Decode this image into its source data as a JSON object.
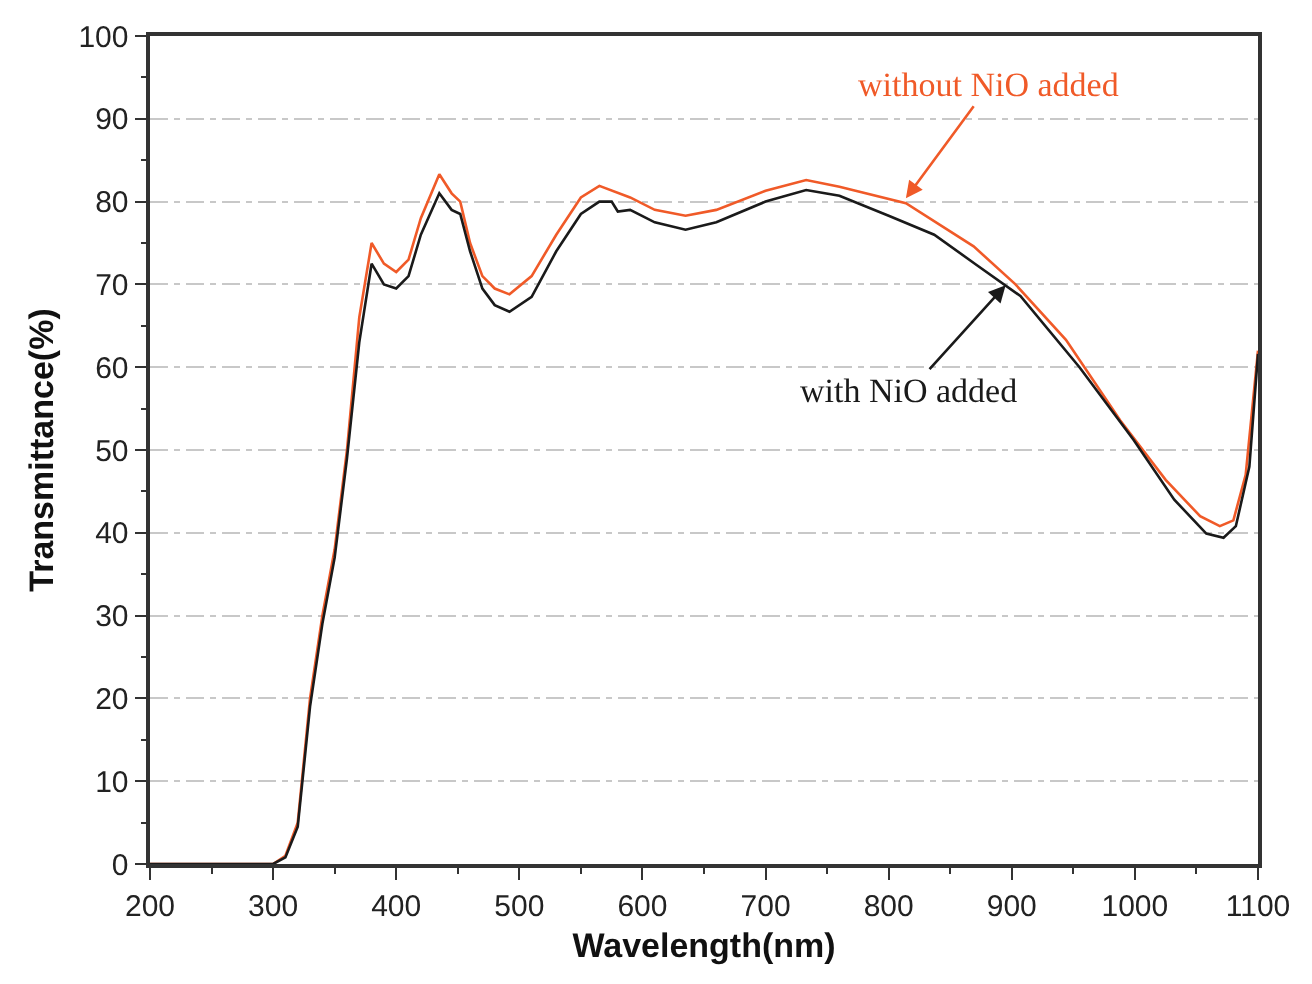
{
  "chart_data": {
    "type": "line",
    "xlabel": "Wavelength(nm)",
    "ylabel": "Transmittance(%)",
    "xlim": [
      200,
      1100
    ],
    "xticks": [
      200,
      300,
      400,
      500,
      600,
      700,
      800,
      900,
      1000,
      1100
    ],
    "ylim": [
      0,
      100
    ],
    "yticks": [
      0,
      10,
      20,
      30,
      40,
      50,
      60,
      70,
      80,
      90,
      100
    ],
    "grid": "y",
    "line_style": "solid",
    "marker": "none",
    "series": [
      {
        "color": "#f05a28",
        "x": [
          200,
          250,
          300,
          310,
          320,
          330,
          340,
          350,
          360,
          370,
          380,
          390,
          400,
          410,
          420,
          435,
          445,
          452,
          460,
          470,
          480,
          492,
          510,
          530,
          550,
          565,
          590,
          610,
          635,
          660,
          700,
          733,
          760,
          814,
          869,
          903,
          944,
          988,
          1025,
          1053,
          1069,
          1080,
          1090,
          1100
        ],
        "values": [
          0,
          0,
          0,
          1,
          5,
          20,
          30,
          38,
          50,
          66,
          75,
          72.5,
          71.5,
          73,
          78,
          83.3,
          81,
          80,
          75,
          71,
          69.5,
          68.8,
          71,
          76,
          80.5,
          81.9,
          80.5,
          79,
          78.3,
          79,
          81.3,
          82.6,
          81.8,
          79.8,
          74.6,
          70,
          63.3,
          53.6,
          46.4,
          42,
          40.8,
          41.5,
          47,
          62
        ]
      },
      {
        "color": "#1a1a1a",
        "x": [
          200,
          250,
          300,
          310,
          320,
          330,
          340,
          350,
          360,
          370,
          380,
          390,
          400,
          410,
          420,
          435,
          445,
          452,
          460,
          470,
          480,
          492,
          510,
          530,
          550,
          565,
          575,
          580,
          590,
          610,
          635,
          660,
          700,
          733,
          760,
          800,
          837,
          870,
          907,
          955,
          999,
          1032,
          1058,
          1072,
          1082,
          1093,
          1100
        ],
        "values": [
          0,
          0,
          0,
          0.8,
          4.5,
          19,
          29,
          37,
          49,
          63,
          72.5,
          70,
          69.5,
          71,
          76,
          81,
          79,
          78.5,
          74,
          69.5,
          67.5,
          66.7,
          68.5,
          74,
          78.5,
          80,
          80,
          78.8,
          79,
          77.5,
          76.6,
          77.5,
          80,
          81.4,
          80.7,
          78.3,
          76,
          72.5,
          68.6,
          60,
          51.2,
          44,
          39.9,
          39.4,
          40.8,
          48,
          61.6
        ]
      }
    ],
    "annotations": [
      {
        "text": "without NiO added",
        "x": 814,
        "y": 80.4
      },
      {
        "text": "with NiO added",
        "x": 895,
        "y": 69.9
      }
    ]
  }
}
